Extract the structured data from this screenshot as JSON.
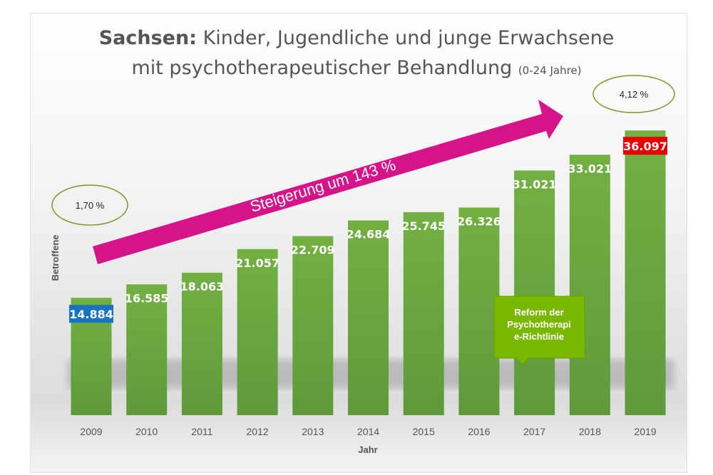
{
  "chart_data": {
    "type": "bar",
    "title_bold": "Sachsen:",
    "title_line1": "Kinder, Jugendliche und junge Erwachsene",
    "title_line2": "mit psychotherapeutischer Behandlung",
    "title_suffix": "(0-24 Jahre)",
    "xlabel": "Jahr",
    "ylabel": "Betroffene",
    "categories": [
      "2009",
      "2010",
      "2011",
      "2012",
      "2013",
      "2014",
      "2015",
      "2016",
      "2017",
      "2018",
      "2019"
    ],
    "values": [
      14884,
      16585,
      18063,
      21057,
      22709,
      24684,
      25745,
      26326,
      31021,
      33021,
      36097
    ],
    "value_labels": [
      "14.884",
      "16.585",
      "18.063",
      "21.057",
      "22.709",
      "24.684",
      "25.745",
      "26.326",
      "31.021",
      "33.021",
      "36.097"
    ],
    "ylim": [
      0,
      40000
    ],
    "grid": false,
    "bar_color": "#6aa642",
    "highlight": {
      "first_color": "#1874c2",
      "last_color": "#e60000"
    },
    "annotations": {
      "arrow_text": "Steigerung um 143 %",
      "arrow_color": "#d6148a",
      "start_share": "1,70 %",
      "end_share": "4,12 %",
      "callout": "Reform der Psychotherapi e-Richtlinie",
      "callout_lines": [
        "Reform der",
        "Psychotherapi",
        "e-Richtlinie"
      ],
      "callout_color": "#7ab800"
    }
  }
}
